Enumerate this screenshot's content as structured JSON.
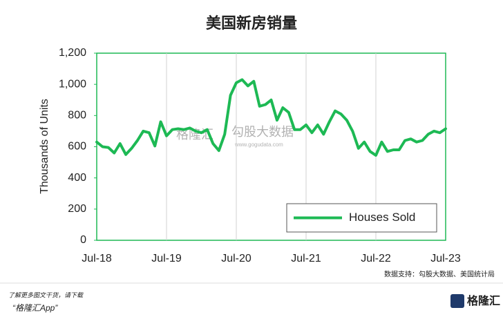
{
  "chart_data": {
    "type": "line",
    "title": "美国新房销量",
    "ylabel": "Thousands of Units",
    "categories": [
      "Jul-18",
      null,
      null,
      null,
      null,
      null,
      null,
      null,
      null,
      null,
      null,
      null,
      "Jul-19",
      null,
      null,
      null,
      null,
      null,
      null,
      null,
      null,
      null,
      null,
      null,
      "Jul-20",
      null,
      null,
      null,
      null,
      null,
      null,
      null,
      null,
      null,
      null,
      null,
      "Jul-21",
      null,
      null,
      null,
      null,
      null,
      null,
      null,
      null,
      null,
      null,
      null,
      "Jul-22",
      null,
      null,
      null,
      null,
      null,
      null,
      null,
      null,
      null,
      null,
      null,
      "Jul-23"
    ],
    "series": [
      {
        "name": "Houses Sold",
        "color": "#1db954",
        "values": [
          630,
          600,
          595,
          560,
          620,
          550,
          590,
          640,
          700,
          690,
          605,
          760,
          670,
          710,
          715,
          710,
          720,
          700,
          690,
          710,
          620,
          575,
          680,
          930,
          1010,
          1030,
          990,
          1020,
          860,
          870,
          900,
          770,
          850,
          820,
          710,
          710,
          740,
          690,
          740,
          680,
          760,
          830,
          810,
          770,
          700,
          590,
          630,
          570,
          545,
          630,
          570,
          580,
          580,
          640,
          650,
          630,
          640,
          680,
          700,
          690,
          715
        ]
      }
    ],
    "ylim": [
      0,
      1200
    ],
    "yticks": [
      0,
      200,
      400,
      {
        "value": 600,
        "label": "600"
      },
      800,
      {
        "value": 1000,
        "label": "1,000"
      },
      {
        "value": 1200,
        "label": "1,200"
      }
    ],
    "grid": "x",
    "legend": "lower right",
    "frame_color": "#1db954"
  },
  "watermark": {
    "brand": "格隆汇",
    "name": "勾股大数据",
    "url": "www.gogudata.com"
  },
  "source": "数据支持：勾股大数据、美国统计局",
  "footer": {
    "line1": "了解更多图文干货，请下载",
    "line2": "“格隆汇App”",
    "logo": "格隆汇"
  }
}
